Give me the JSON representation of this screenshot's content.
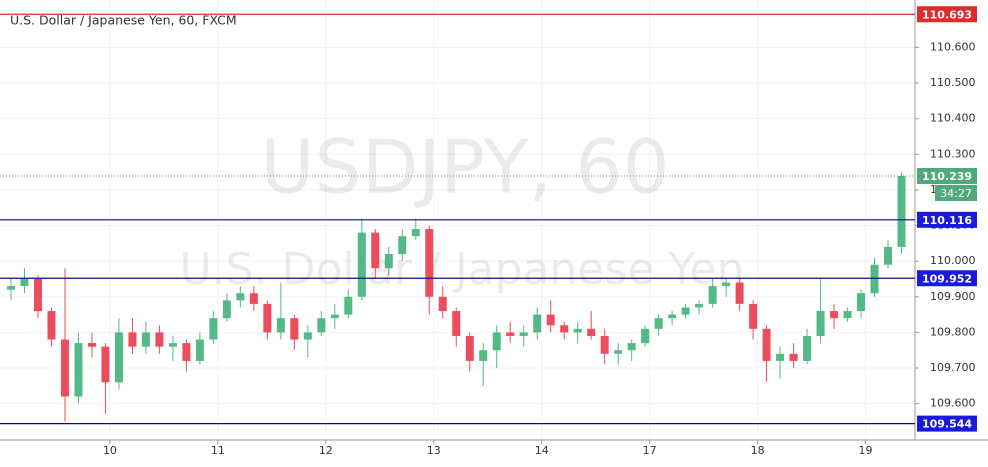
{
  "chart_data": {
    "type": "candlestick",
    "title": "U.S. Dollar / Japanese Yen, 60, FXCM",
    "watermark": "USDJPY, 60",
    "watermark_subtitle": "U.S. Dollar / Japanese Yen",
    "countdown": "34:27",
    "x": [
      2,
      5,
      8,
      11,
      14,
      17,
      20,
      23,
      26,
      29,
      32,
      35,
      38,
      41,
      44,
      47,
      50,
      53,
      56,
      59,
      62,
      65,
      68,
      71,
      74,
      77,
      80,
      83,
      86,
      89,
      92,
      95,
      98,
      101,
      104,
      107,
      110,
      113,
      116,
      119,
      122,
      125,
      128,
      131,
      134,
      137,
      140,
      143,
      146,
      149,
      152,
      155,
      158,
      161,
      164,
      167,
      170,
      173,
      176,
      179,
      182,
      185,
      188,
      191,
      194,
      197,
      200
    ],
    "open": [
      109.92,
      109.93,
      109.95,
      109.86,
      109.78,
      109.62,
      109.77,
      109.76,
      109.66,
      109.8,
      109.76,
      109.8,
      109.76,
      109.77,
      109.72,
      109.78,
      109.84,
      109.89,
      109.91,
      109.88,
      109.8,
      109.84,
      109.78,
      109.8,
      109.84,
      109.85,
      109.9,
      110.08,
      109.98,
      110.02,
      110.07,
      110.09,
      109.9,
      109.86,
      109.79,
      109.72,
      109.75,
      109.8,
      109.79,
      109.8,
      109.85,
      109.82,
      109.8,
      109.81,
      109.79,
      109.74,
      109.75,
      109.77,
      109.81,
      109.84,
      109.85,
      109.87,
      109.88,
      109.93,
      109.94,
      109.88,
      109.81,
      109.72,
      109.74,
      109.72,
      109.79,
      109.86,
      109.84,
      109.86,
      109.91,
      109.99,
      110.04
    ],
    "high": [
      109.95,
      109.98,
      109.96,
      109.87,
      109.98,
      109.8,
      109.8,
      109.77,
      109.84,
      109.84,
      109.83,
      109.82,
      109.79,
      109.78,
      109.8,
      109.86,
      109.91,
      109.93,
      109.93,
      109.89,
      109.94,
      109.85,
      109.82,
      109.86,
      109.88,
      109.92,
      110.12,
      110.09,
      110.04,
      110.09,
      110.12,
      110.1,
      109.93,
      109.87,
      109.8,
      109.77,
      109.82,
      109.83,
      109.82,
      109.87,
      109.89,
      109.83,
      109.83,
      109.86,
      109.81,
      109.77,
      109.78,
      109.82,
      109.85,
      109.86,
      109.88,
      109.89,
      109.95,
      109.95,
      109.95,
      109.89,
      109.82,
      109.76,
      109.77,
      109.81,
      109.95,
      109.88,
      109.87,
      109.92,
      110.01,
      110.06,
      110.25
    ],
    "low": [
      109.89,
      109.91,
      109.84,
      109.76,
      109.55,
      109.6,
      109.73,
      109.57,
      109.64,
      109.74,
      109.74,
      109.74,
      109.72,
      109.69,
      109.71,
      109.77,
      109.83,
      109.87,
      109.86,
      109.78,
      109.78,
      109.75,
      109.73,
      109.79,
      109.81,
      109.84,
      109.89,
      109.95,
      109.96,
      110.0,
      110.06,
      109.85,
      109.84,
      109.76,
      109.69,
      109.65,
      109.7,
      109.77,
      109.76,
      109.78,
      109.8,
      109.78,
      109.77,
      109.78,
      109.71,
      109.71,
      109.72,
      109.76,
      109.79,
      109.82,
      109.84,
      109.85,
      109.87,
      109.9,
      109.86,
      109.78,
      109.66,
      109.67,
      109.7,
      109.71,
      109.77,
      109.81,
      109.83,
      109.84,
      109.9,
      109.98,
      110.02
    ],
    "close": [
      109.93,
      109.95,
      109.86,
      109.78,
      109.62,
      109.77,
      109.76,
      109.66,
      109.8,
      109.76,
      109.8,
      109.76,
      109.77,
      109.72,
      109.78,
      109.84,
      109.89,
      109.91,
      109.88,
      109.8,
      109.84,
      109.78,
      109.8,
      109.84,
      109.85,
      109.9,
      110.08,
      109.98,
      110.02,
      110.07,
      110.09,
      109.9,
      109.86,
      109.79,
      109.72,
      109.75,
      109.8,
      109.79,
      109.8,
      109.85,
      109.82,
      109.8,
      109.81,
      109.79,
      109.74,
      109.75,
      109.77,
      109.81,
      109.84,
      109.85,
      109.87,
      109.88,
      109.93,
      109.94,
      109.88,
      109.81,
      109.72,
      109.74,
      109.72,
      109.79,
      109.86,
      109.84,
      109.86,
      109.91,
      109.99,
      110.04,
      110.239
    ],
    "up_color": "#53b987",
    "down_color": "#eb4d5c",
    "xlim": [
      0,
      203
    ],
    "xticks": [
      {
        "value": 24,
        "label": "10"
      },
      {
        "value": 48,
        "label": "11"
      },
      {
        "value": 72,
        "label": "12"
      },
      {
        "value": 96,
        "label": "13"
      },
      {
        "value": 120,
        "label": "14"
      },
      {
        "value": 144,
        "label": "17"
      },
      {
        "value": 168,
        "label": "18"
      },
      {
        "value": 192,
        "label": "19"
      }
    ],
    "ylim": [
      109.498,
      110.733
    ],
    "yticks": [
      {
        "value": 109.6,
        "label": "109.600"
      },
      {
        "value": 109.7,
        "label": "109.700"
      },
      {
        "value": 109.8,
        "label": "109.800"
      },
      {
        "value": 109.9,
        "label": "109.900"
      },
      {
        "value": 110.0,
        "label": "110.000"
      },
      {
        "value": 110.1,
        "label": "110.100"
      },
      {
        "value": 110.2,
        "label": "110.200"
      },
      {
        "value": 110.3,
        "label": "110.300"
      },
      {
        "value": 110.4,
        "label": "110.400"
      },
      {
        "value": 110.5,
        "label": "110.500"
      },
      {
        "value": 110.6,
        "label": "110.600"
      }
    ],
    "grid": true,
    "hlines": [
      {
        "value": 110.693,
        "color": "#e02b2b"
      },
      {
        "value": 110.116,
        "color": "#0a0a8c"
      },
      {
        "value": 109.952,
        "color": "#0a0a8c"
      },
      {
        "value": 109.544,
        "color": "#0a0a8c"
      }
    ],
    "hline_label_color": "#1a1adb",
    "last_price_color": "#4fa97a"
  }
}
